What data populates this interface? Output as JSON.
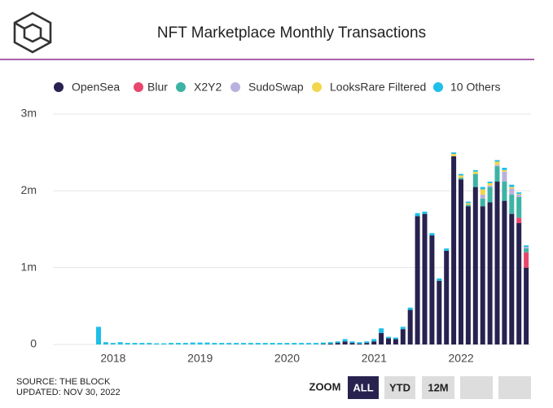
{
  "chart_data": {
    "type": "stacked-bar",
    "title": "NFT Marketplace Monthly Transactions",
    "categories": [
      null,
      "2018",
      null,
      null,
      null,
      null,
      null,
      null,
      null,
      null,
      null,
      null,
      null,
      "2019",
      null,
      null,
      null,
      null,
      null,
      null,
      null,
      null,
      null,
      null,
      null,
      "2020",
      null,
      null,
      null,
      null,
      null,
      null,
      null,
      null,
      null,
      null,
      null,
      "2021",
      null,
      null,
      null,
      null,
      null,
      null,
      null,
      null,
      null,
      null,
      null,
      "2022",
      null,
      null,
      null,
      null,
      null,
      null,
      null,
      null,
      null,
      null
    ],
    "series": [
      {
        "name": "OpenSea",
        "color": "#27224f",
        "values": [
          0,
          0,
          0,
          0,
          0,
          0,
          0,
          0,
          0,
          0,
          0,
          0,
          0,
          0,
          0,
          0,
          0,
          0,
          0,
          0,
          0,
          0,
          0,
          0,
          0,
          0,
          0,
          0,
          0,
          0,
          0,
          0.005,
          0.01,
          0.02,
          0.04,
          0.02,
          0.01,
          0.02,
          0.04,
          0.15,
          0.08,
          0.07,
          0.2,
          0.45,
          1.67,
          1.7,
          1.42,
          0.83,
          1.22,
          2.45,
          2.15,
          1.8,
          2.05,
          1.8,
          1.85,
          2.12,
          1.87,
          1.7,
          1.58,
          1.0
        ]
      },
      {
        "name": "Blur",
        "color": "#e8476b",
        "values": [
          0,
          0,
          0,
          0,
          0,
          0,
          0,
          0,
          0,
          0,
          0,
          0,
          0,
          0,
          0,
          0,
          0,
          0,
          0,
          0,
          0,
          0,
          0,
          0,
          0,
          0,
          0,
          0,
          0,
          0,
          0,
          0,
          0,
          0,
          0,
          0,
          0,
          0,
          0,
          0,
          0,
          0,
          0,
          0,
          0,
          0,
          0,
          0,
          0,
          0,
          0,
          0,
          0,
          0,
          0,
          0,
          0,
          0,
          0.07,
          0.2
        ]
      },
      {
        "name": "X2Y2",
        "color": "#3db3a4",
        "values": [
          0,
          0,
          0,
          0,
          0,
          0,
          0,
          0,
          0,
          0,
          0,
          0,
          0,
          0,
          0,
          0,
          0,
          0,
          0,
          0,
          0,
          0,
          0,
          0,
          0,
          0,
          0,
          0,
          0,
          0,
          0,
          0,
          0,
          0,
          0,
          0,
          0,
          0,
          0,
          0,
          0,
          0,
          0,
          0,
          0,
          0,
          0,
          0,
          0,
          0,
          0.02,
          0.02,
          0.17,
          0.1,
          0.2,
          0.2,
          0.25,
          0.25,
          0.27,
          0.05
        ]
      },
      {
        "name": "SudoSwap",
        "color": "#b9b1dd",
        "values": [
          0,
          0,
          0,
          0,
          0,
          0,
          0,
          0,
          0,
          0,
          0,
          0,
          0,
          0,
          0,
          0,
          0,
          0,
          0,
          0,
          0,
          0,
          0,
          0,
          0,
          0,
          0,
          0,
          0,
          0,
          0,
          0,
          0,
          0,
          0,
          0,
          0,
          0,
          0,
          0,
          0,
          0,
          0,
          0,
          0,
          0,
          0,
          0,
          0,
          0,
          0,
          0,
          0,
          0.05,
          0.02,
          0.02,
          0.13,
          0.08,
          0.03,
          0.02
        ]
      },
      {
        "name": "LooksRare Filtered",
        "color": "#f3d64b",
        "values": [
          0,
          0,
          0,
          0,
          0,
          0,
          0,
          0,
          0,
          0,
          0,
          0,
          0,
          0,
          0,
          0,
          0,
          0,
          0,
          0,
          0,
          0,
          0,
          0,
          0,
          0,
          0,
          0,
          0,
          0,
          0,
          0,
          0,
          0,
          0,
          0,
          0,
          0,
          0,
          0,
          0,
          0,
          0,
          0,
          0,
          0,
          0,
          0,
          0,
          0.03,
          0.03,
          0.02,
          0.03,
          0.07,
          0.03,
          0.04,
          0.02,
          0.02,
          0.01,
          0
        ]
      },
      {
        "name": "10 Others",
        "color": "#1ebfe8",
        "values": [
          0.23,
          0.03,
          0.02,
          0.03,
          0.02,
          0.02,
          0.02,
          0.02,
          0.015,
          0.015,
          0.02,
          0.02,
          0.02,
          0.025,
          0.025,
          0.025,
          0.02,
          0.02,
          0.02,
          0.02,
          0.02,
          0.02,
          0.02,
          0.02,
          0.02,
          0.02,
          0.02,
          0.02,
          0.02,
          0.02,
          0.02,
          0.02,
          0.02,
          0.02,
          0.03,
          0.02,
          0.02,
          0.02,
          0.03,
          0.06,
          0.02,
          0.02,
          0.03,
          0.03,
          0.04,
          0.03,
          0.03,
          0.03,
          0.03,
          0.02,
          0.02,
          0.02,
          0.02,
          0.03,
          0.02,
          0.02,
          0.03,
          0.03,
          0.02,
          0.02
        ]
      }
    ],
    "ylim": [
      0,
      3
    ],
    "yticks": [
      0,
      {
        "value": 1,
        "label": "1m"
      },
      {
        "value": 2,
        "label": "2m"
      },
      {
        "value": 3,
        "label": "3m"
      }
    ],
    "grid": true,
    "legend": "top"
  },
  "footer": {
    "source": "SOURCE: THE BLOCK",
    "updated": "UPDATED: NOV 30, 2022"
  },
  "zoom": {
    "label": "ZOOM",
    "buttons": [
      "ALL",
      "YTD",
      "12M"
    ],
    "active": "ALL"
  }
}
